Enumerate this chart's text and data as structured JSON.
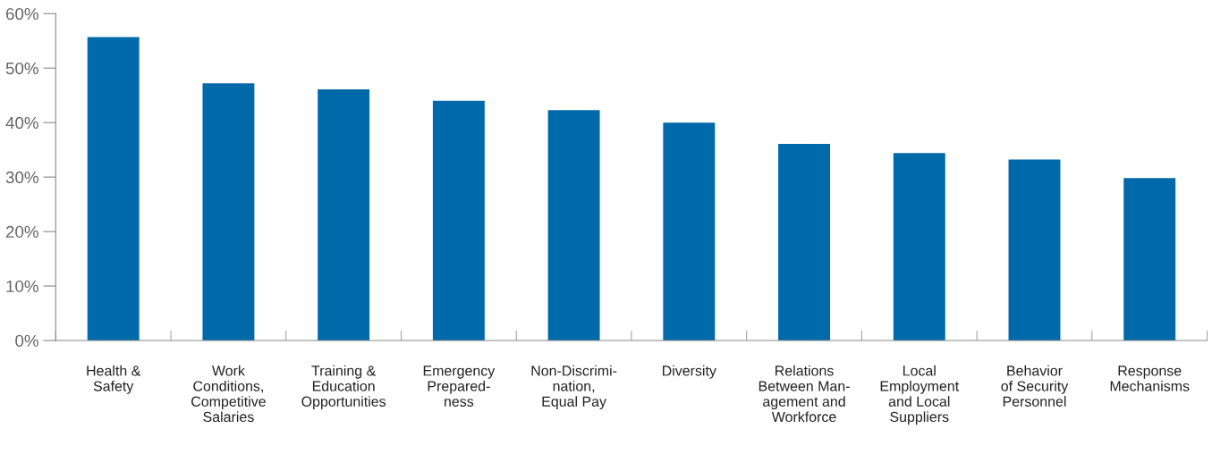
{
  "chart_data": {
    "type": "bar",
    "categories": [
      "Health &\nSafety",
      "Work\nConditions,\nCompetitive\nSalaries",
      "Training &\nEducation\nOpportunities",
      "Emergency\nPrepared-\nness",
      "Non-Discrimi-\nnation,\nEqual Pay",
      "Diversity",
      "Relations\nBetween Man-\nagement and\nWorkforce",
      "Local\nEmployment\nand Local\nSuppliers",
      "Behavior\nof Security\nPersonnel",
      "Response\nMechanisms"
    ],
    "values": [
      55.7,
      47.2,
      46.1,
      44.0,
      42.3,
      40.0,
      36.1,
      34.4,
      33.2,
      29.8
    ],
    "color": "#0069aa",
    "ylim": [
      0,
      60
    ],
    "yticks": [
      {
        "value": 0,
        "label": "0%"
      },
      {
        "value": 10,
        "label": "10%"
      },
      {
        "value": 20,
        "label": "20%"
      },
      {
        "value": 30,
        "label": "30%"
      },
      {
        "value": 40,
        "label": "40%"
      },
      {
        "value": 50,
        "label": "50%"
      },
      {
        "value": 60,
        "label": "60%"
      }
    ],
    "grid": false
  }
}
